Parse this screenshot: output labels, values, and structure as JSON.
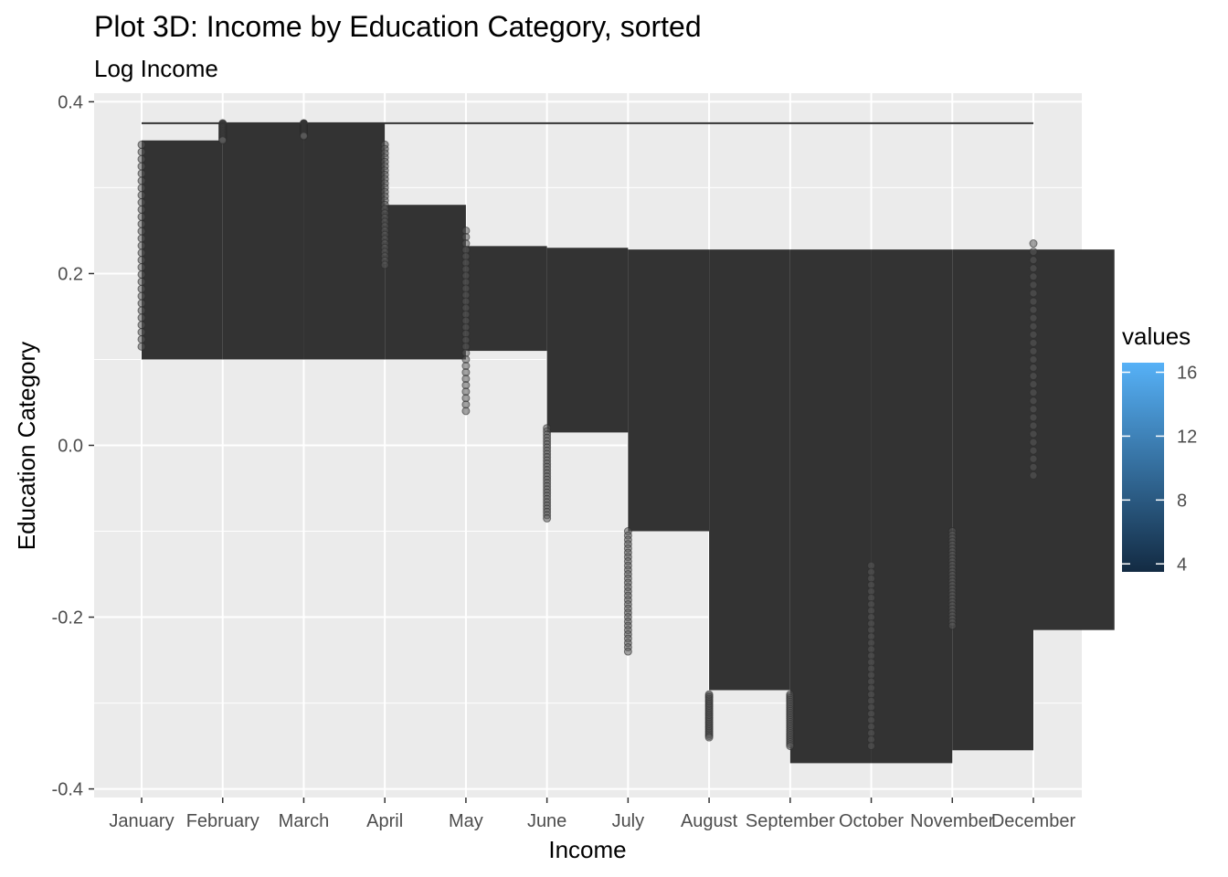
{
  "chart_data": {
    "type": "bar",
    "title": "Plot 3D: Income by Education Category, sorted",
    "subtitle": "Log Income",
    "xlabel": "Income",
    "ylabel": "Education Category",
    "categories": [
      "January",
      "February",
      "March",
      "April",
      "May",
      "June",
      "July",
      "August",
      "September",
      "October",
      "November",
      "December"
    ],
    "ylim": [
      -0.41,
      0.41
    ],
    "y_ticks": [
      -0.4,
      -0.2,
      0.0,
      0.2,
      0.4
    ],
    "y_tick_labels": [
      "-0.4",
      "-0.2",
      "0.0",
      "0.2",
      "0.4"
    ],
    "grid": true,
    "reference_line": 0.375,
    "series": [
      {
        "values_high": [
          0.355,
          0.375,
          0.375,
          0.28,
          0.232,
          0.23,
          0.228,
          0.228,
          0.228,
          0.228,
          0.228,
          0.228
        ],
        "values_low": [
          0.1,
          0.1,
          0.1,
          0.1,
          0.11,
          0.015,
          -0.1,
          -0.285,
          -0.37,
          -0.37,
          -0.355,
          -0.215
        ],
        "points_high": [
          0.35,
          0.375,
          0.375,
          0.35,
          0.25,
          0.02,
          -0.1,
          -0.29,
          -0.29,
          -0.14,
          -0.1,
          0.235
        ],
        "points_low": [
          0.115,
          0.355,
          0.36,
          0.21,
          0.04,
          -0.085,
          -0.24,
          -0.34,
          -0.35,
          -0.35,
          -0.21,
          -0.035
        ]
      }
    ],
    "legend": {
      "title": "values",
      "position": "right",
      "range": [
        3.5,
        16.6
      ],
      "breaks": [
        4,
        8,
        12,
        16
      ],
      "break_labels": [
        "4",
        "8",
        "12",
        "16"
      ],
      "color_low": "#132b43",
      "color_high": "#56b1f7"
    },
    "colors": {
      "panel": "#ebebeb",
      "grid": "#ffffff",
      "bar": "#333333",
      "point": "#595959"
    }
  }
}
